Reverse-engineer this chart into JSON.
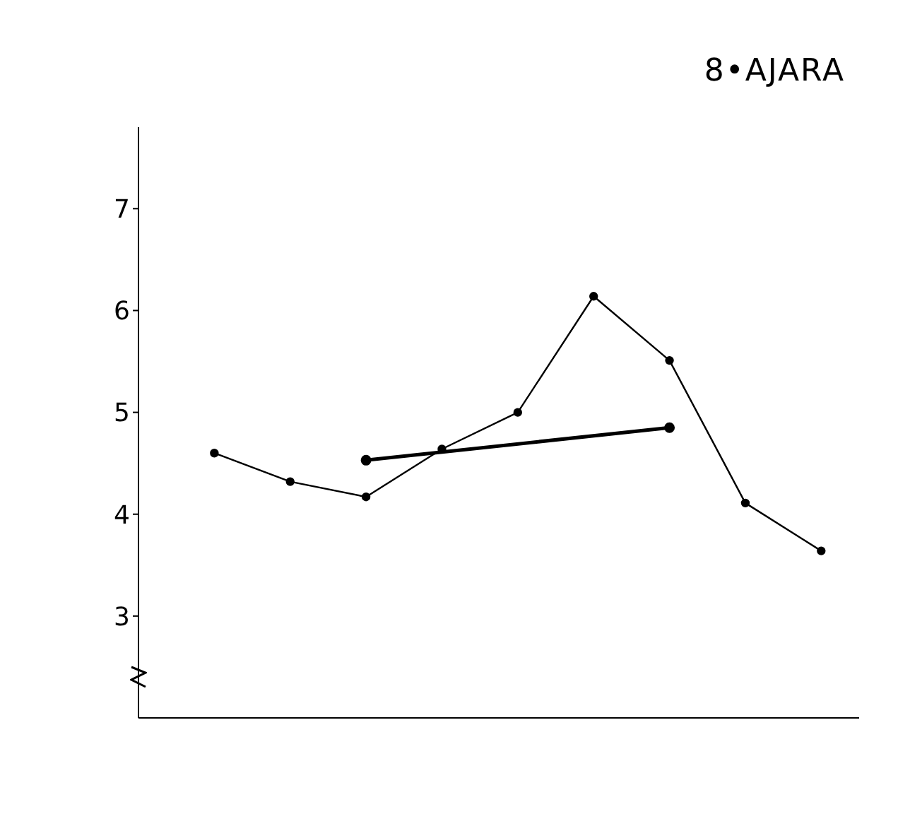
{
  "chart_data": {
    "type": "line",
    "title": "8•AJARA",
    "tick_labels": "y",
    "marker": "circle",
    "line_style": "solid",
    "categories": [
      null,
      null,
      null,
      null,
      null,
      null,
      null,
      null,
      null
    ],
    "ylim": [
      2,
      7.8
    ],
    "yticks": [
      3,
      4,
      5,
      6,
      7
    ],
    "series": [
      {
        "color": "#000000",
        "values": [
          4.6,
          4.32,
          4.17,
          4.64,
          5.0,
          6.14,
          5.51,
          4.11,
          3.64
        ]
      },
      {
        "color": "#000000",
        "values": [
          null,
          null,
          4.53,
          null,
          null,
          null,
          4.85,
          null,
          null
        ]
      }
    ]
  }
}
